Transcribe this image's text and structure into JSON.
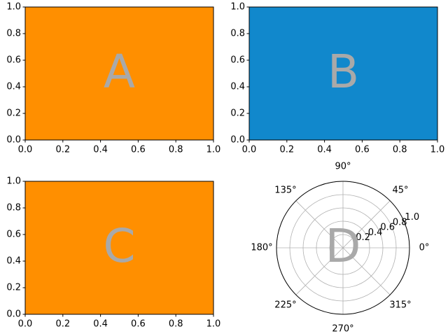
{
  "chart_data": [
    {
      "type": "panel",
      "label": "A",
      "facecolor": "#ff8f00",
      "xlim": [
        0,
        1
      ],
      "ylim": [
        0,
        1
      ],
      "xticks": [
        {
          "value": 0,
          "label": "0.0"
        },
        0.2,
        0.4,
        0.6,
        0.8,
        {
          "value": 1,
          "label": "1.0"
        }
      ],
      "yticks": [
        {
          "value": 0,
          "label": "0.0"
        },
        0.2,
        0.4,
        0.6,
        0.8,
        {
          "value": 1,
          "label": "1.0"
        }
      ]
    },
    {
      "type": "panel",
      "label": "B",
      "facecolor": "#1188cc",
      "xlim": [
        0,
        1
      ],
      "ylim": [
        0,
        1
      ],
      "xticks": [
        {
          "value": 0,
          "label": "0.0"
        },
        0.2,
        0.4,
        0.6,
        0.8,
        {
          "value": 1,
          "label": "1.0"
        }
      ],
      "yticks": [
        {
          "value": 0,
          "label": "0.0"
        },
        0.2,
        0.4,
        0.6,
        0.8,
        {
          "value": 1,
          "label": "1.0"
        }
      ]
    },
    {
      "type": "panel",
      "label": "C",
      "facecolor": "#ff8f00",
      "xlim": [
        0,
        1
      ],
      "ylim": [
        0,
        1
      ],
      "xticks": [
        {
          "value": 0,
          "label": "0.0"
        },
        0.2,
        0.4,
        0.6,
        0.8,
        {
          "value": 1,
          "label": "1.0"
        }
      ],
      "yticks": [
        {
          "value": 0,
          "label": "0.0"
        },
        0.2,
        0.4,
        0.6,
        0.8,
        {
          "value": 1,
          "label": "1.0"
        }
      ]
    },
    {
      "type": "polar",
      "label": "D",
      "facecolor": "#ffffff",
      "grid": true,
      "ylim": [
        0,
        1
      ],
      "yticks": [
        0.2,
        0.4,
        0.6,
        0.8,
        {
          "value": 1,
          "label": "1.0"
        }
      ],
      "xticks": [
        {
          "value": 0,
          "label": "0°"
        },
        {
          "value": 45,
          "label": "45°"
        },
        {
          "value": 90,
          "label": "90°"
        },
        {
          "value": 135,
          "label": "135°"
        },
        {
          "value": 180,
          "label": "180°"
        },
        {
          "value": 225,
          "label": "225°"
        },
        {
          "value": 270,
          "label": "270°"
        },
        {
          "value": 315,
          "label": "315°"
        }
      ]
    }
  ]
}
